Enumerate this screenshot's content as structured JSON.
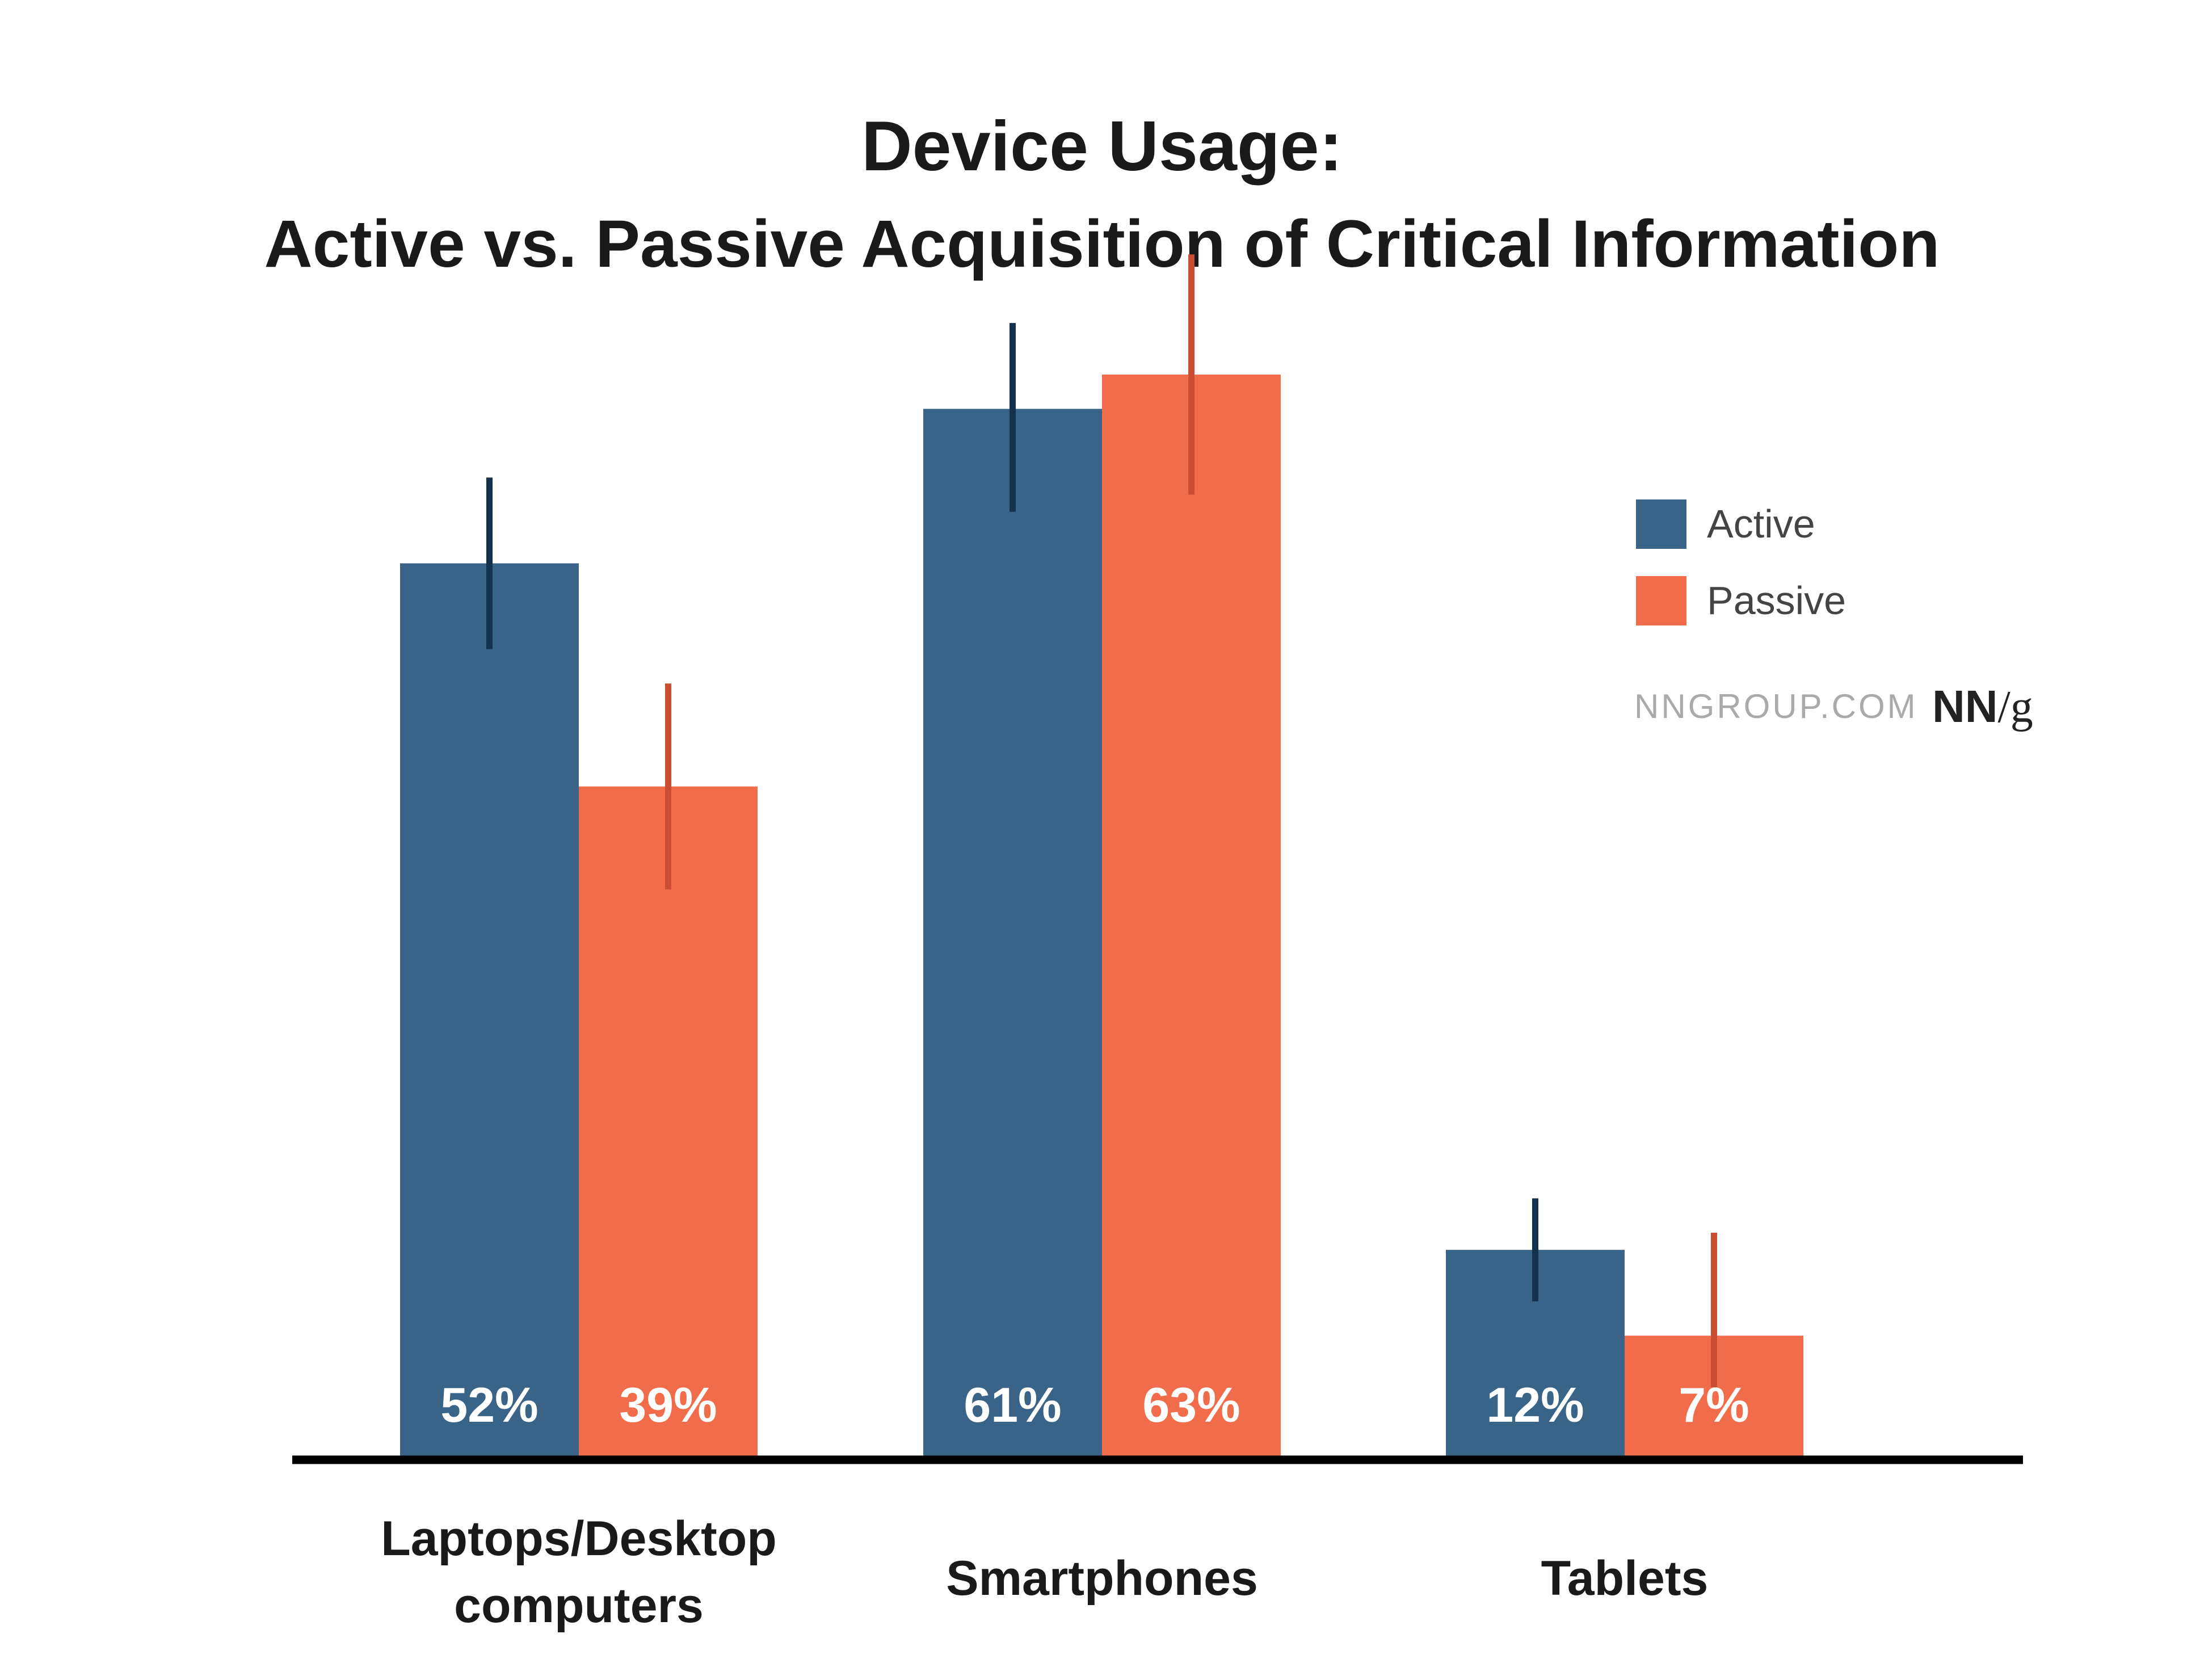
{
  "chart_data": {
    "type": "bar",
    "title_lines": [
      "Device Usage:",
      "Active vs. Passive Acquisition of Critical Information"
    ],
    "categories": [
      [
        "Laptops/Desktop",
        "computers"
      ],
      [
        "Smartphones"
      ],
      [
        "Tablets"
      ]
    ],
    "series": [
      {
        "name": "Active",
        "color": "#3A6487",
        "error_color": "#14324D",
        "values": [
          52,
          61,
          12
        ],
        "labels": [
          "52%",
          "61%",
          "12%"
        ],
        "error_low": [
          47,
          55,
          9
        ],
        "error_high": [
          57,
          66,
          15
        ]
      },
      {
        "name": "Passive",
        "color": "#F06C4A",
        "error_color": "#C94E33",
        "values": [
          39,
          63,
          7
        ],
        "labels": [
          "39%",
          "63%",
          "7%"
        ],
        "error_low": [
          33,
          56,
          4
        ],
        "error_high": [
          45,
          70,
          13
        ]
      }
    ],
    "ylim": [
      0,
      100
    ],
    "grid": false,
    "legend_position": "top-right"
  },
  "brand": {
    "site": "NNGROUP.COM",
    "logo_nn": "NN",
    "logo_g": "/g"
  },
  "colors": {
    "title": "#1a1a1a",
    "axis": "#000000",
    "legend_text": "#444444",
    "site_text": "#aaaaaa",
    "value_label": "#ffffff"
  }
}
